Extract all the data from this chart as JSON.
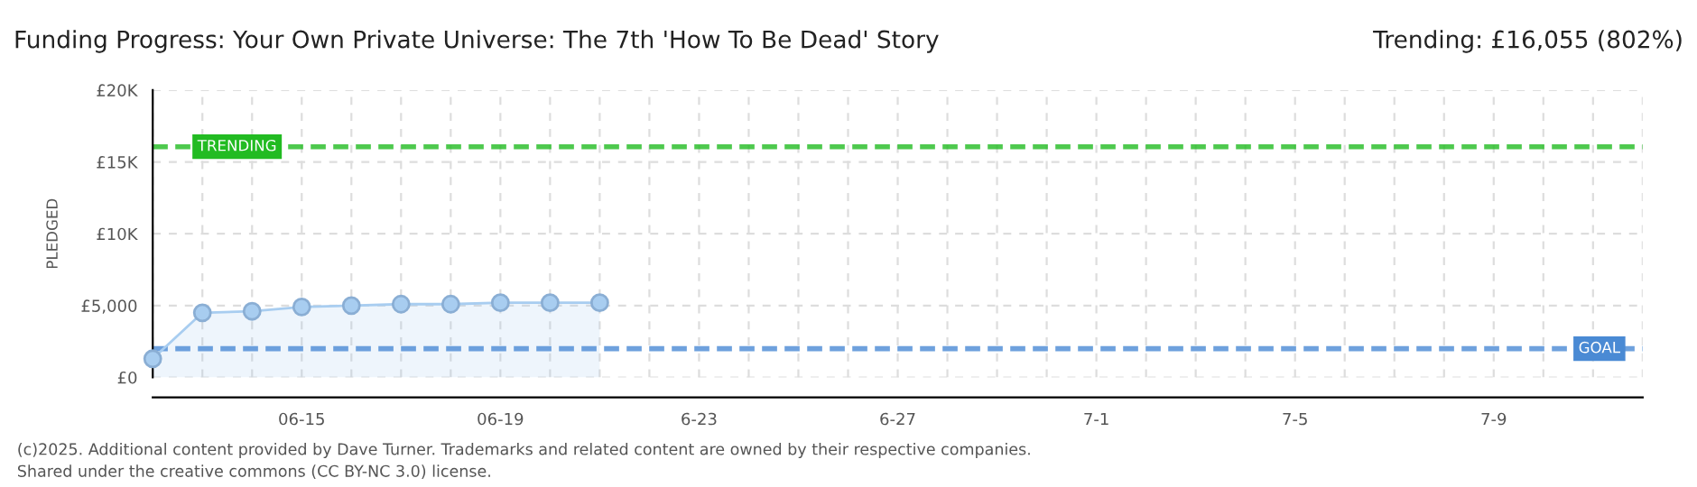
{
  "chart_data": {
    "type": "area",
    "title": "Funding Progress: Your Own Private Universe: The 7th 'How To Be Dead' Story",
    "ylabel": "PLEDGED",
    "x": [
      "2025-06-12",
      "2025-06-13",
      "2025-06-14",
      "2025-06-15",
      "2025-06-16",
      "2025-06-17",
      "2025-06-18",
      "2025-06-19",
      "2025-06-20",
      "2025-06-21"
    ],
    "series": [
      {
        "color": "#a8cdf0",
        "values": [
          1300,
          4500,
          4600,
          4900,
          5000,
          5100,
          5100,
          5200,
          5200,
          5200
        ]
      }
    ],
    "marker": "circle",
    "xlim": [
      "2025-06-12",
      "2025-07-12"
    ],
    "xticks": [
      {
        "value": "2025-06-12",
        "label": null
      },
      {
        "value": "2025-06-13",
        "label": null
      },
      {
        "value": "2025-06-14",
        "label": null
      },
      {
        "value": "2025-06-15",
        "label": "06-15"
      },
      {
        "value": "2025-06-16",
        "label": null
      },
      {
        "value": "2025-06-17",
        "label": null
      },
      {
        "value": "2025-06-18",
        "label": null
      },
      {
        "value": "2025-06-19",
        "label": "06-19"
      },
      {
        "value": "2025-06-20",
        "label": null
      },
      {
        "value": "2025-06-21",
        "label": null
      },
      {
        "value": "2025-06-22",
        "label": null
      },
      {
        "value": "2025-06-23",
        "label": "6-23"
      },
      {
        "value": "2025-06-24",
        "label": null
      },
      {
        "value": "2025-06-25",
        "label": null
      },
      {
        "value": "2025-06-26",
        "label": null
      },
      {
        "value": "2025-06-27",
        "label": "6-27"
      },
      {
        "value": "2025-06-28",
        "label": null
      },
      {
        "value": "2025-06-29",
        "label": null
      },
      {
        "value": "2025-06-30",
        "label": null
      },
      {
        "value": "2025-07-01",
        "label": "7-1"
      },
      {
        "value": "2025-07-02",
        "label": null
      },
      {
        "value": "2025-07-03",
        "label": null
      },
      {
        "value": "2025-07-04",
        "label": null
      },
      {
        "value": "2025-07-05",
        "label": "7-5"
      },
      {
        "value": "2025-07-06",
        "label": null
      },
      {
        "value": "2025-07-07",
        "label": null
      },
      {
        "value": "2025-07-08",
        "label": null
      },
      {
        "value": "2025-07-09",
        "label": "7-9"
      },
      {
        "value": "2025-07-10",
        "label": null
      },
      {
        "value": "2025-07-11",
        "label": null
      },
      {
        "value": "2025-07-12",
        "label": null
      }
    ],
    "ylim": [
      0,
      20000
    ],
    "yticks": [
      {
        "value": 0,
        "label": "£0"
      },
      {
        "value": 5000,
        "label": "£5,000"
      },
      {
        "value": 10000,
        "label": "£10K"
      },
      {
        "value": 15000,
        "label": "£15K"
      },
      {
        "value": 20000,
        "label": "£20K"
      }
    ],
    "grid": true,
    "ref_lines": [
      {
        "axis": "y",
        "value": 16055,
        "label": "TRENDING",
        "color": "#22bb22",
        "line_style": "dashed"
      },
      {
        "axis": "y",
        "value": 2000,
        "label": "GOAL",
        "color": "#4a8ad4",
        "line_style": "dashed"
      }
    ],
    "annotations": [
      "Trending: £16,055 (802%)",
      "(c)2025. Additional content provided by Dave Turner. Trademarks and related content are owned by their respective companies.",
      "Shared under the creative commons (CC BY-NC 3.0) license."
    ]
  }
}
